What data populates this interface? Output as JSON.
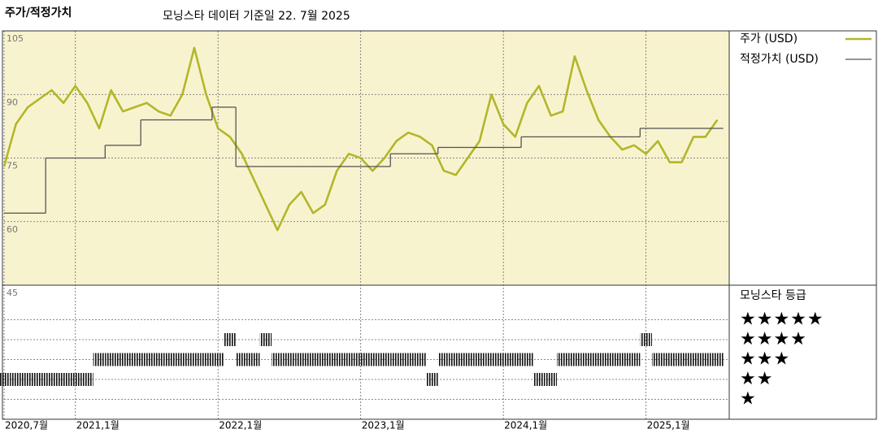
{
  "chart_data": {
    "type": "line",
    "title": "주가/적정가치",
    "subtitle": "모닝스타 데이터 기준일 22. 7월 2025",
    "x": [
      "2020-07",
      "2020-08",
      "2020-09",
      "2020-10",
      "2020-11",
      "2020-12",
      "2021-01",
      "2021-02",
      "2021-03",
      "2021-04",
      "2021-05",
      "2021-06",
      "2021-07",
      "2021-08",
      "2021-09",
      "2021-10",
      "2021-11",
      "2021-12",
      "2022-01",
      "2022-02",
      "2022-03",
      "2022-04",
      "2022-05",
      "2022-06",
      "2022-07",
      "2022-08",
      "2022-09",
      "2022-10",
      "2022-11",
      "2022-12",
      "2023-01",
      "2023-02",
      "2023-03",
      "2023-04",
      "2023-05",
      "2023-06",
      "2023-07",
      "2023-08",
      "2023-09",
      "2023-10",
      "2023-11",
      "2023-12",
      "2024-01",
      "2024-02",
      "2024-03",
      "2024-04",
      "2024-05",
      "2024-06",
      "2024-07",
      "2024-08",
      "2024-09",
      "2024-10",
      "2024-11",
      "2024-12",
      "2025-01",
      "2025-02",
      "2025-03",
      "2025-04",
      "2025-05",
      "2025-06",
      "2025-07"
    ],
    "series": [
      {
        "name": "주가 (USD)",
        "color": "#b3b62a",
        "values": [
          73,
          83,
          87,
          89,
          91,
          88,
          92,
          88,
          82,
          91,
          86,
          87,
          88,
          86,
          85,
          90,
          101,
          90,
          82,
          80,
          76,
          70,
          64,
          58,
          64,
          67,
          62,
          64,
          72,
          76,
          75,
          72,
          75,
          79,
          81,
          80,
          78,
          72,
          71,
          75,
          79,
          90,
          83,
          80,
          88,
          92,
          85,
          86,
          99,
          91,
          84,
          80,
          77,
          78,
          76,
          79,
          74,
          74,
          80,
          80,
          84
        ]
      },
      {
        "name": "적정가치 (USD)",
        "color": "#555555",
        "step": true,
        "values": [
          62,
          62,
          62,
          62,
          75,
          75,
          75,
          75,
          75,
          78,
          78,
          78,
          84,
          84,
          84,
          84,
          84,
          84,
          87,
          87,
          73,
          73,
          73,
          73,
          73,
          73,
          73,
          73,
          73,
          73,
          73,
          73,
          73,
          76,
          76,
          76,
          76,
          77.5,
          77.5,
          77.5,
          77.5,
          77.5,
          77.5,
          77.5,
          80,
          80,
          80,
          80,
          80,
          80,
          80,
          80,
          80,
          80,
          82,
          82,
          82,
          82,
          82,
          82,
          82
        ]
      }
    ],
    "xlim": [
      "2020-07",
      "2025-08"
    ],
    "xticks": [
      {
        "value": "2020-07",
        "label": "2020,7월"
      },
      {
        "value": "2021-01",
        "label": "2021,1월"
      },
      {
        "value": "2022-01",
        "label": "2022,1월"
      },
      {
        "value": "2023-01",
        "label": "2023,1월"
      },
      {
        "value": "2024-01",
        "label": "2024,1월"
      },
      {
        "value": "2025-01",
        "label": "2025,1월"
      }
    ],
    "ylim": [
      45,
      105
    ],
    "yticks": [
      105,
      90,
      75,
      60,
      45
    ],
    "grid": true,
    "rating": {
      "title": "모닝스타 등급",
      "levels": [
        {
          "value": 5,
          "label": "★★★★★"
        },
        {
          "value": 4,
          "label": "★★★★"
        },
        {
          "value": 3,
          "label": "★★★"
        },
        {
          "value": 2,
          "label": "★★"
        },
        {
          "value": 1,
          "label": "★"
        }
      ],
      "values": [
        2,
        2,
        2,
        2,
        2,
        2,
        2,
        2,
        3,
        3,
        3,
        3,
        3,
        3,
        3,
        3,
        3,
        3,
        3,
        4,
        3,
        3,
        4,
        3,
        3,
        3,
        3,
        3,
        3,
        3,
        3,
        3,
        3,
        3,
        3,
        3,
        2,
        3,
        3,
        3,
        3,
        3,
        3,
        3,
        3,
        2,
        2,
        3,
        3,
        3,
        3,
        3,
        3,
        3,
        4,
        3,
        3,
        3,
        3,
        3,
        3
      ]
    }
  }
}
